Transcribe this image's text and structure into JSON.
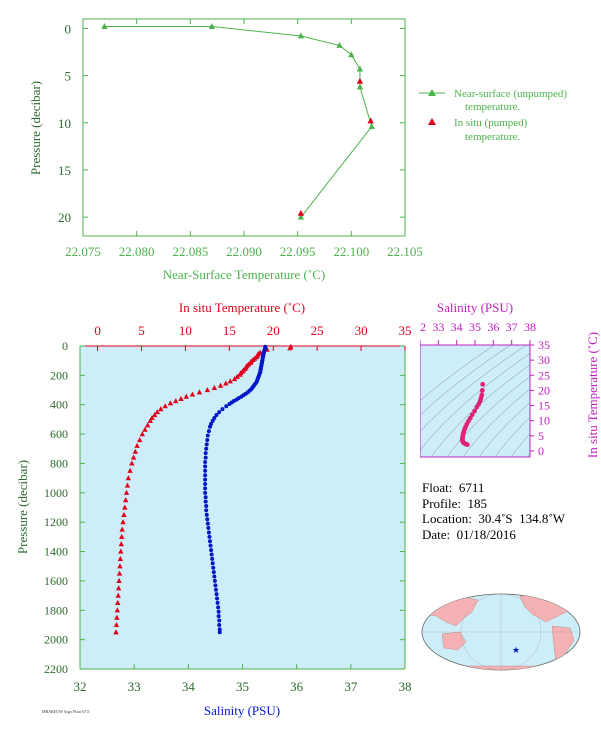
{
  "colors": {
    "green": "#4cb34c",
    "red": "#e0001b",
    "blue": "#0018c8",
    "magenta": "#c020c0",
    "axis_green": "#2f6a2f",
    "panel_bg": "#cdeef8",
    "land": "#f5b2b5",
    "ocean": "#cdeef8"
  },
  "chart_data": [
    {
      "type": "line",
      "xlabel": "Near-Surface Temperature (˚C)",
      "ylabel": "Pressure (decibar)",
      "xlim": [
        22.075,
        22.105
      ],
      "ylim": [
        22,
        -1
      ],
      "xticks": [
        "22.075",
        "22.080",
        "22.085",
        "22.090",
        "22.095",
        "22.100",
        "22.105"
      ],
      "yticks": [
        "0",
        "5",
        "10",
        "15",
        "20"
      ],
      "series": [
        {
          "name": "Near-surface (unpumped) temperature.",
          "marker": "triangle",
          "color": "#4cb34c",
          "x": [
            22.077,
            22.087,
            22.0953,
            22.0989,
            22.1,
            22.1008,
            22.1008,
            22.1019,
            22.0953
          ],
          "y": [
            -0.2,
            -0.2,
            0.8,
            1.8,
            2.8,
            4.3,
            6.2,
            10.4,
            20.0
          ]
        },
        {
          "name": "In situ (pumped) temperature.",
          "marker": "triangle",
          "color": "#e0001b",
          "x": [
            22.1008,
            22.1018,
            22.0953
          ],
          "y": [
            5.6,
            9.8,
            19.6
          ]
        }
      ],
      "legend": "right"
    },
    {
      "type": "scatter",
      "xlabel_top": "In situ Temperature (˚C)",
      "xlabel_bottom": "Salinity (PSU)",
      "ylabel": "Pressure (decibar)",
      "top_lim": [
        -2,
        35
      ],
      "bottom_lim": [
        32,
        38
      ],
      "ylim": [
        2200,
        0
      ],
      "top_ticks": [
        "0",
        "5",
        "10",
        "15",
        "20",
        "25",
        "30",
        "35"
      ],
      "bottom_ticks": [
        "32",
        "33",
        "34",
        "35",
        "36",
        "37",
        "38"
      ],
      "yticks": [
        "0",
        "200",
        "400",
        "600",
        "800",
        "1000",
        "1200",
        "1400",
        "1600",
        "1800",
        "2000",
        "2200"
      ],
      "temperature": {
        "name": "In situ Temperature",
        "color": "#e0001b",
        "p": [
          5,
          15,
          25,
          35,
          45,
          55,
          65,
          75,
          85,
          95,
          105,
          115,
          125,
          135,
          145,
          155,
          165,
          175,
          185,
          195,
          210,
          225,
          240,
          255,
          270,
          285,
          300,
          315,
          330,
          345,
          360,
          375,
          390,
          410,
          430,
          450,
          470,
          490,
          510,
          540,
          570,
          600,
          640,
          680,
          720,
          760,
          800,
          850,
          900,
          950,
          1000,
          1050,
          1100,
          1150,
          1200,
          1250,
          1300,
          1350,
          1400,
          1450,
          1500,
          1550,
          1600,
          1650,
          1700,
          1750,
          1800,
          1850,
          1900,
          1950
        ],
        "t": [
          22,
          21.9,
          19.3,
          18.9,
          18.5,
          18.3,
          18.2,
          18.1,
          17.9,
          17.7,
          17.5,
          17.4,
          17.2,
          17.0,
          16.9,
          16.8,
          16.6,
          16.5,
          16.3,
          16.2,
          15.9,
          15.6,
          15.1,
          14.6,
          14.0,
          13.3,
          12.5,
          11.6,
          10.8,
          10.1,
          9.5,
          8.9,
          8.3,
          7.7,
          7.2,
          6.8,
          6.5,
          6.2,
          6.0,
          5.7,
          5.4,
          5.1,
          4.8,
          4.5,
          4.3,
          4.1,
          3.9,
          3.7,
          3.5,
          3.4,
          3.3,
          3.2,
          3.1,
          3.0,
          2.9,
          2.8,
          2.75,
          2.7,
          2.65,
          2.6,
          2.55,
          2.5,
          2.45,
          2.4,
          2.35,
          2.3,
          2.25,
          2.2,
          2.15,
          2.1
        ]
      },
      "salinity": {
        "name": "Salinity",
        "color": "#0018c8",
        "p": [
          5,
          15,
          25,
          35,
          45,
          55,
          65,
          75,
          85,
          95,
          105,
          115,
          125,
          135,
          145,
          155,
          165,
          175,
          185,
          195,
          205,
          215,
          225,
          235,
          245,
          255,
          265,
          275,
          285,
          295,
          305,
          315,
          325,
          335,
          345,
          355,
          365,
          375,
          385,
          395,
          410,
          430,
          450,
          470,
          490,
          510,
          530,
          550,
          580,
          610,
          640,
          670,
          700,
          730,
          760,
          790,
          820,
          850,
          880,
          910,
          940,
          970,
          1000,
          1030,
          1060,
          1090,
          1120,
          1150,
          1180,
          1210,
          1240,
          1270,
          1300,
          1330,
          1360,
          1390,
          1420,
          1450,
          1480,
          1510,
          1540,
          1570,
          1600,
          1630,
          1660,
          1690,
          1720,
          1750,
          1780,
          1810,
          1840,
          1870,
          1900,
          1930,
          1950
        ],
        "s": [
          35.42,
          35.42,
          35.41,
          35.4,
          35.39,
          35.39,
          35.38,
          35.38,
          35.37,
          35.37,
          35.36,
          35.36,
          35.35,
          35.35,
          35.34,
          35.34,
          35.33,
          35.33,
          35.32,
          35.31,
          35.3,
          35.29,
          35.28,
          35.27,
          35.26,
          35.24,
          35.22,
          35.2,
          35.18,
          35.16,
          35.13,
          35.1,
          35.06,
          35.02,
          34.98,
          34.93,
          34.89,
          34.84,
          34.8,
          34.76,
          34.7,
          34.63,
          34.57,
          34.52,
          34.48,
          34.45,
          34.42,
          34.4,
          34.38,
          34.36,
          34.35,
          34.34,
          34.33,
          34.32,
          34.32,
          34.31,
          34.31,
          34.31,
          34.31,
          34.31,
          34.31,
          34.31,
          34.31,
          34.32,
          34.32,
          34.33,
          34.33,
          34.34,
          34.35,
          34.36,
          34.37,
          34.38,
          34.39,
          34.4,
          34.41,
          34.42,
          34.43,
          34.44,
          34.45,
          34.46,
          34.47,
          34.48,
          34.49,
          34.5,
          34.51,
          34.52,
          34.53,
          34.54,
          34.55,
          34.56,
          34.56,
          34.57,
          34.57,
          34.58,
          34.58
        ]
      }
    },
    {
      "type": "scatter",
      "title": "Salinity (PSU)",
      "ylabel": "In situ Temperature (˚C)",
      "xlim": [
        32,
        38
      ],
      "ylim": [
        -2,
        35
      ],
      "xticks": [
        "32",
        "33",
        "34",
        "35",
        "36",
        "37",
        "38"
      ],
      "yticks": [
        "0",
        "5",
        "10",
        "15",
        "20",
        "25",
        "30",
        "35"
      ],
      "series": [
        {
          "name": "T-S",
          "color": "#e0207a",
          "s": [
            35.42,
            35.4,
            35.37,
            35.33,
            35.28,
            35.2,
            35.1,
            34.98,
            34.85,
            34.74,
            34.64,
            34.55,
            34.48,
            34.42,
            34.38,
            34.35,
            34.33,
            34.32,
            34.31,
            34.32,
            34.35,
            34.4,
            34.46,
            34.52,
            34.58
          ],
          "t": [
            22,
            20,
            18.5,
            17.5,
            16.5,
            15.5,
            14.5,
            13.2,
            12,
            10.8,
            9.8,
            8.8,
            7.8,
            7,
            6.2,
            5.5,
            4.8,
            4.2,
            3.7,
            3.3,
            2.9,
            2.6,
            2.4,
            2.2,
            2.1
          ]
        }
      ]
    }
  ],
  "info": {
    "float_label": "Float:",
    "float_value": "6711",
    "profile_label": "Profile:",
    "profile_value": "185",
    "location_label": "Location:",
    "location_value": "30.4˚S  134.8˚W",
    "date_label": "Date:",
    "date_value": "01/18/2016"
  },
  "footer_text": "MBARI/UW Argo Float 6711"
}
